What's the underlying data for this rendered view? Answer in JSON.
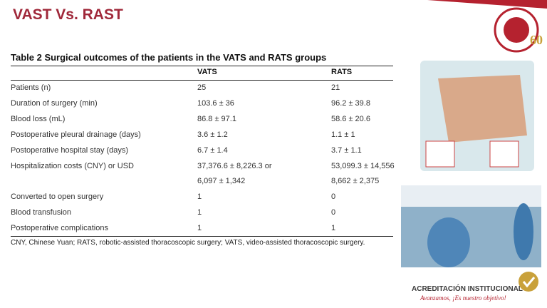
{
  "title": "VAST Vs. RAST",
  "table": {
    "caption": "Table 2 Surgical outcomes of the patients in the VATS and RATS groups",
    "columns": [
      "VATS",
      "RATS"
    ],
    "rows": [
      {
        "label": "Patients (n)",
        "vats": "25",
        "rats": "21"
      },
      {
        "label": "Duration of surgery (min)",
        "vats": "103.6 ± 36",
        "rats": "96.2 ± 39.8"
      },
      {
        "label": "Blood loss (mL)",
        "vats": "86.8 ± 97.1",
        "rats": "58.6 ± 20.6"
      },
      {
        "label": "Postoperative pleural drainage (days)",
        "vats": "3.6 ± 1.2",
        "rats": "1.1 ± 1"
      },
      {
        "label": "Postoperative hospital stay (days)",
        "vats": "6.7 ± 1.4",
        "rats": "3.7 ± 1.1"
      },
      {
        "label": "Hospitalization costs (CNY) or USD",
        "vats": [
          "37,376.6 ± 8,226.3 or",
          "6,097 ± 1,342"
        ],
        "rats": [
          "53,099.3 ± 14,556",
          "8,662 ± 2,375"
        ]
      },
      {
        "label": "Converted to open surgery",
        "vats": "1",
        "rats": "0"
      },
      {
        "label": "Blood transfusion",
        "vats": "1",
        "rats": "0"
      },
      {
        "label": "Postoperative complications",
        "vats": "1",
        "rats": "1"
      }
    ],
    "footnote": "CNY, Chinese Yuan; RATS, robotic-assisted thoracoscopic surgery; VATS, video-assisted thoracoscopic surgery."
  },
  "badge": {
    "title": "ACREDITACIÓN INSTITUCIONAL",
    "motto": "Avanzamos, ¡Es nuestro objetivo!"
  }
}
